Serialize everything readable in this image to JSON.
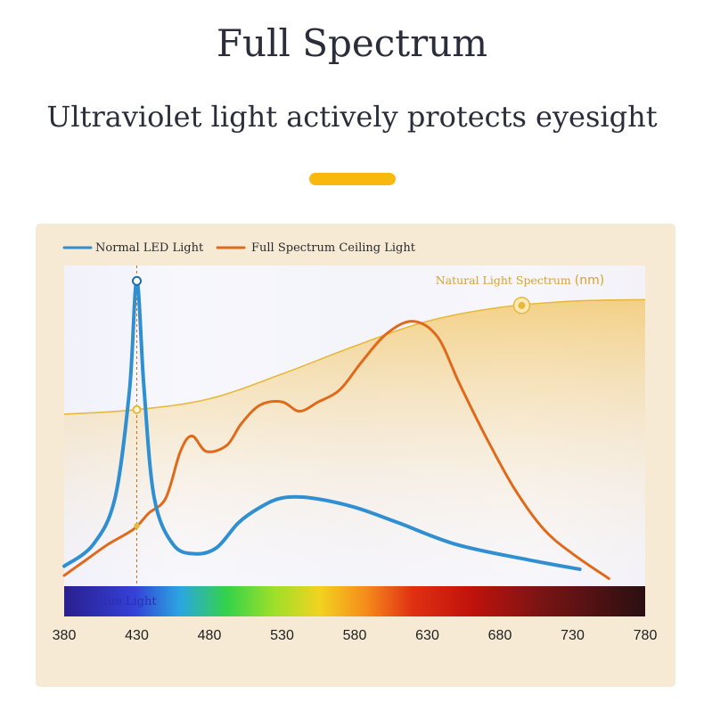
{
  "header": {
    "title": "Full Spectrum",
    "subtitle": "Ultraviolet light actively protects eyesight"
  },
  "colors": {
    "accent": "#f7b90f",
    "normal_led": "#2f8fd0",
    "full_spectrum": "#e06a1c",
    "natural": "#e8b83a"
  },
  "chart_data": {
    "type": "line",
    "xlabel": "",
    "ylabel": "",
    "xlim": [
      380,
      780
    ],
    "ylim": [
      0,
      100
    ],
    "x_ticks": [
      380,
      430,
      480,
      530,
      580,
      630,
      680,
      730,
      780
    ],
    "legend_position": "top-left",
    "series": [
      {
        "name": "Normal LED Light",
        "color": "#2f8fd0",
        "points": [
          [
            380,
            3
          ],
          [
            400,
            10
          ],
          [
            415,
            25
          ],
          [
            425,
            60
          ],
          [
            430,
            95
          ],
          [
            435,
            60
          ],
          [
            442,
            25
          ],
          [
            455,
            10
          ],
          [
            470,
            7
          ],
          [
            485,
            9
          ],
          [
            500,
            17
          ],
          [
            515,
            22
          ],
          [
            530,
            25
          ],
          [
            550,
            25
          ],
          [
            580,
            22
          ],
          [
            610,
            17
          ],
          [
            650,
            10
          ],
          [
            700,
            5
          ],
          [
            735,
            2
          ]
        ]
      },
      {
        "name": "Full Spectrum Ceiling Light",
        "color": "#e06a1c",
        "points": [
          [
            380,
            0
          ],
          [
            395,
            5
          ],
          [
            410,
            10
          ],
          [
            428,
            15
          ],
          [
            438,
            20
          ],
          [
            450,
            25
          ],
          [
            460,
            40
          ],
          [
            468,
            45
          ],
          [
            478,
            40
          ],
          [
            492,
            42
          ],
          [
            502,
            49
          ],
          [
            515,
            55
          ],
          [
            530,
            56
          ],
          [
            542,
            53
          ],
          [
            555,
            56
          ],
          [
            570,
            60
          ],
          [
            585,
            69
          ],
          [
            602,
            78
          ],
          [
            620,
            82
          ],
          [
            637,
            77
          ],
          [
            652,
            62
          ],
          [
            670,
            45
          ],
          [
            690,
            28
          ],
          [
            710,
            15
          ],
          [
            730,
            7
          ],
          [
            755,
            -1
          ]
        ]
      },
      {
        "name": "Natural Light Spectrum",
        "label": "Natural Light Spectrum",
        "unit": "(nm)",
        "color": "#e8b83a",
        "points": [
          [
            380,
            52
          ],
          [
            430,
            53.5
          ],
          [
            480,
            57
          ],
          [
            530,
            65
          ],
          [
            580,
            74
          ],
          [
            630,
            82
          ],
          [
            680,
            86.5
          ],
          [
            730,
            88.5
          ],
          [
            780,
            89
          ]
        ]
      }
    ],
    "band_label": "Blue Light",
    "vertical_marker_x": 430,
    "highlight_x_natural": 695,
    "grid": false
  }
}
